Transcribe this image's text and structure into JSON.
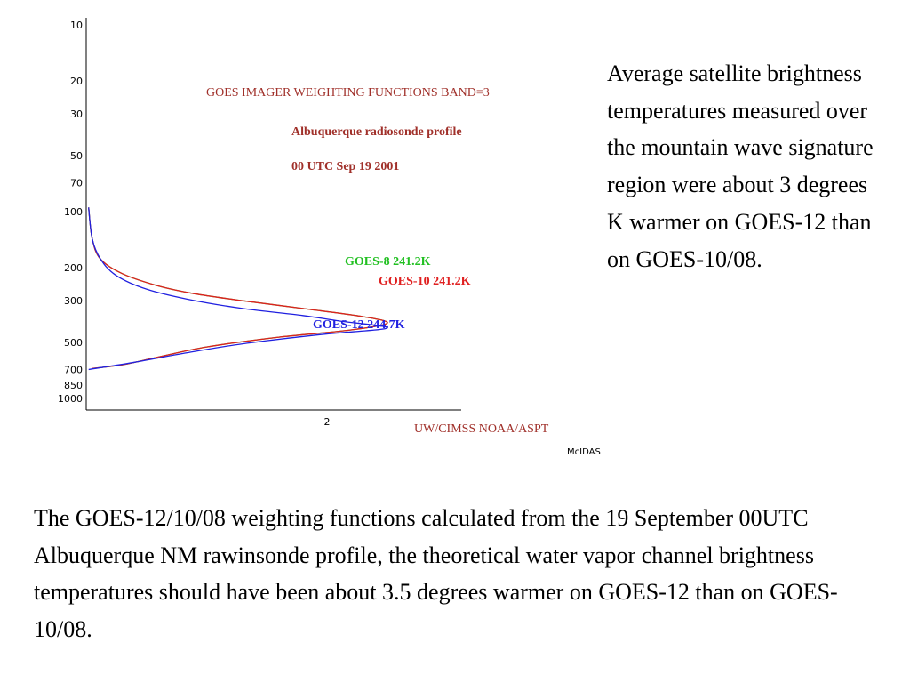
{
  "chart_data": {
    "type": "line",
    "title": "GOES IMAGER WEIGHTING FUNCTIONS  BAND=3",
    "subtitle_lines": [
      "Albuquerque radiosonde profile",
      "00 UTC  Sep 19 2001"
    ],
    "y_axis": {
      "scale": "log",
      "inverted": true,
      "ticks": [
        10,
        20,
        30,
        50,
        70,
        100,
        200,
        300,
        500,
        700,
        850,
        1000
      ],
      "ylim": [
        10,
        1000
      ]
    },
    "x_axis": {
      "ticks": [
        2
      ],
      "xlim": [
        0,
        3.6
      ]
    },
    "series": [
      {
        "name": "GOES-8  241.2K",
        "color": "#22c022",
        "points": [
          [
            0.02,
            95
          ],
          [
            0.05,
            140
          ],
          [
            0.12,
            180
          ],
          [
            0.3,
            215
          ],
          [
            0.6,
            250
          ],
          [
            0.9,
            275
          ],
          [
            1.3,
            300
          ],
          [
            1.8,
            330
          ],
          [
            2.3,
            365
          ],
          [
            2.5,
            395
          ],
          [
            2.2,
            430
          ],
          [
            1.6,
            470
          ],
          [
            1.0,
            530
          ],
          [
            0.6,
            600
          ],
          [
            0.3,
            660
          ],
          [
            0.05,
            690
          ]
        ]
      },
      {
        "name": "GOES-10 241.2K",
        "color": "#e02020",
        "points": [
          [
            0.02,
            95
          ],
          [
            0.05,
            140
          ],
          [
            0.12,
            180
          ],
          [
            0.3,
            215
          ],
          [
            0.6,
            250
          ],
          [
            0.9,
            275
          ],
          [
            1.3,
            300
          ],
          [
            1.8,
            330
          ],
          [
            2.3,
            365
          ],
          [
            2.5,
            395
          ],
          [
            2.2,
            430
          ],
          [
            1.6,
            470
          ],
          [
            1.0,
            530
          ],
          [
            0.6,
            600
          ],
          [
            0.3,
            660
          ],
          [
            0.05,
            690
          ]
        ]
      },
      {
        "name": "GOES-12 244.7K",
        "color": "#2020e0",
        "points": [
          [
            0.02,
            95
          ],
          [
            0.05,
            140
          ],
          [
            0.12,
            180
          ],
          [
            0.25,
            220
          ],
          [
            0.5,
            260
          ],
          [
            0.85,
            295
          ],
          [
            1.3,
            330
          ],
          [
            1.8,
            360
          ],
          [
            2.1,
            385
          ],
          [
            2.5,
            420
          ],
          [
            1.95,
            455
          ],
          [
            1.3,
            510
          ],
          [
            0.8,
            575
          ],
          [
            0.4,
            640
          ],
          [
            0.02,
            700
          ]
        ]
      }
    ],
    "legend": [
      {
        "label": "GOES-8  241.2K",
        "color": "#22c022"
      },
      {
        "label": "GOES-10 241.2K",
        "color": "#e02020"
      },
      {
        "label": "GOES-12 244.7K",
        "color": "#2020e0"
      }
    ],
    "credit": "UW/CIMSS   NOAA/ASPT",
    "software_label": "McIDAS",
    "grid": false
  },
  "side_note": "Average satellite brightness temperatures measured over the mountain wave signature region were about 3 degrees K warmer on GOES-12 than on GOES-10/08.",
  "caption": "The GOES-12/10/08 weighting functions calculated from the 19 September 00UTC Albuquerque NM rawinsonde profile, the theoretical water vapor channel brightness temperatures should have been about 3.5 degrees warmer on GOES-12 than on GOES-10/08."
}
